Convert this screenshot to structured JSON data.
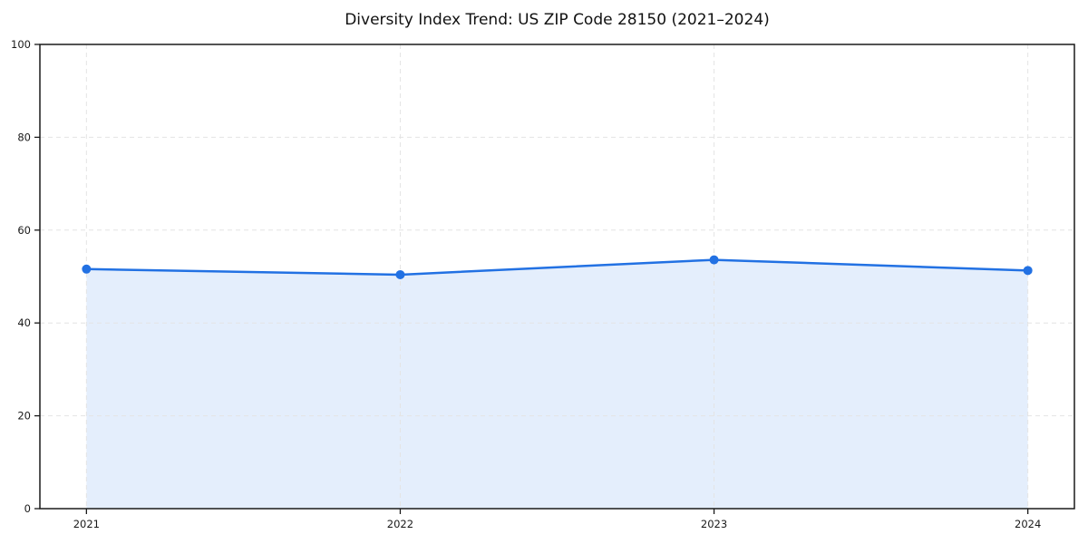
{
  "figure": {
    "background_color": "#ffffff"
  },
  "chart_data": {
    "type": "line",
    "title": "Diversity Index Trend: US ZIP Code 28150 (2021–2024)",
    "xlabel": "",
    "ylabel": "",
    "x": [
      2021,
      2022,
      2023,
      2024
    ],
    "x_tick_labels": [
      "2021",
      "2022",
      "2023",
      "2024"
    ],
    "series": [
      {
        "name": "Diversity Index",
        "values": [
          51.6,
          50.4,
          53.6,
          51.3
        ],
        "marker": "circle",
        "area_fill": true
      }
    ],
    "ylim": [
      0,
      100
    ],
    "yticks": [
      0,
      20,
      40,
      60,
      80,
      100
    ],
    "grid": true,
    "grid_style": "dashed",
    "legend": "none",
    "colors": {
      "line": "#2271e3",
      "marker": "#2271e3",
      "fill": "#2271e3",
      "fill_opacity": 0.12,
      "grid": "#e4e4e4",
      "axis": "#1a1a1a",
      "tick_text": "#1a1a1a",
      "title_text": "#111111"
    }
  }
}
